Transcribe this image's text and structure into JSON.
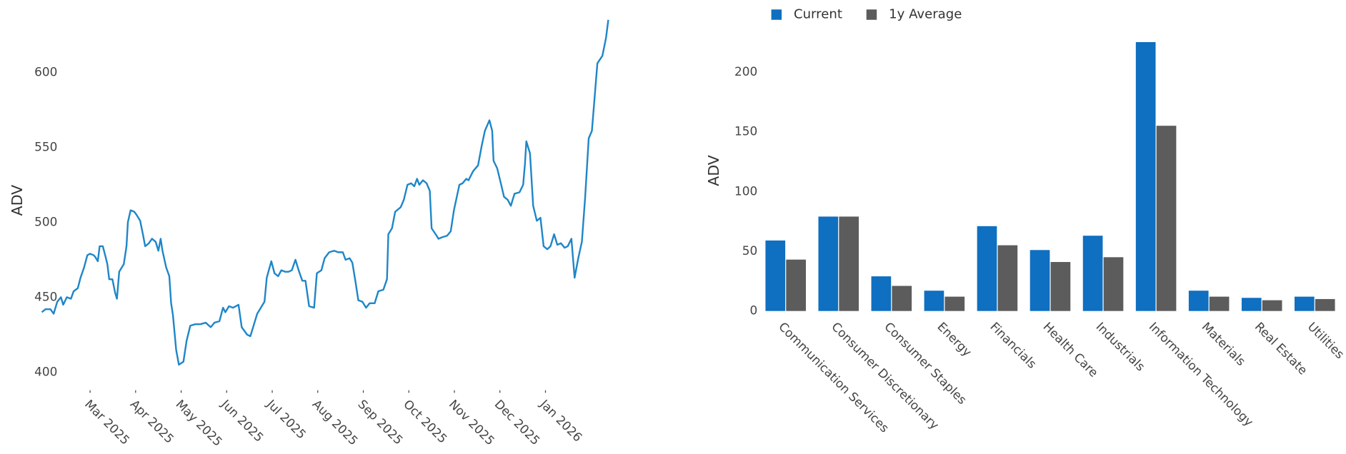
{
  "chart_data": [
    {
      "type": "line",
      "y_label": "ADV",
      "color": "#1f86c8",
      "xlim": [
        -0.21,
        12.57
      ],
      "ylim": [
        391.4,
        637.9
      ],
      "xticks": [
        {
          "value": 1,
          "label": "Mar 2025"
        },
        {
          "value": 2,
          "label": "Apr 2025"
        },
        {
          "value": 3,
          "label": "May 2025"
        },
        {
          "value": 4,
          "label": "Jun 2025"
        },
        {
          "value": 5,
          "label": "Jul 2025"
        },
        {
          "value": 6,
          "label": "Aug 2025"
        },
        {
          "value": 7,
          "label": "Sep 2025"
        },
        {
          "value": 8,
          "label": "Oct 2025"
        },
        {
          "value": 9,
          "label": "Nov 2025"
        },
        {
          "value": 10,
          "label": "Dec 2025"
        },
        {
          "value": 11,
          "label": "Jan 2026"
        }
      ],
      "yticks": [
        400,
        450,
        500,
        550,
        600
      ],
      "x": [
        -0.06,
        0.02,
        0.13,
        0.2,
        0.28,
        0.36,
        0.41,
        0.49,
        0.58,
        0.64,
        0.73,
        0.79,
        0.87,
        0.94,
        1.0,
        1.08,
        1.11,
        1.17,
        1.21,
        1.28,
        1.34,
        1.38,
        1.42,
        1.49,
        1.55,
        1.59,
        1.64,
        1.74,
        1.8,
        1.83,
        1.89,
        1.97,
        2.02,
        2.1,
        2.16,
        2.21,
        2.29,
        2.36,
        2.44,
        2.5,
        2.55,
        2.59,
        2.67,
        2.74,
        2.78,
        2.82,
        2.89,
        2.95,
        3.05,
        3.12,
        3.2,
        3.31,
        3.42,
        3.54,
        3.65,
        3.73,
        3.84,
        3.92,
        3.97,
        4.05,
        4.14,
        4.26,
        4.33,
        4.45,
        4.52,
        4.6,
        4.67,
        4.75,
        4.83,
        4.88,
        4.98,
        5.05,
        5.13,
        5.2,
        5.28,
        5.36,
        5.43,
        5.51,
        5.58,
        5.66,
        5.73,
        5.81,
        5.92,
        5.98,
        6.08,
        6.15,
        6.25,
        6.36,
        6.45,
        6.55,
        6.61,
        6.7,
        6.76,
        6.83,
        6.89,
        6.98,
        7.06,
        7.14,
        7.25,
        7.33,
        7.44,
        7.52,
        7.55,
        7.63,
        7.7,
        7.82,
        7.89,
        7.97,
        8.05,
        8.12,
        8.18,
        8.23,
        8.31,
        8.39,
        8.46,
        8.5,
        8.61,
        8.65,
        8.73,
        8.84,
        8.92,
        8.99,
        9.11,
        9.18,
        9.26,
        9.31,
        9.41,
        9.52,
        9.6,
        9.67,
        9.77,
        9.83,
        9.86,
        9.94,
        10.02,
        10.09,
        10.17,
        10.24,
        10.32,
        10.43,
        10.51,
        10.55,
        10.58,
        10.66,
        10.73,
        10.81,
        10.89,
        10.96,
        11.04,
        11.11,
        11.19,
        11.26,
        11.34,
        11.42,
        11.49,
        11.57,
        11.64,
        11.72,
        11.8,
        11.87,
        11.95,
        12.02,
        12.14,
        12.25,
        12.33,
        12.38
      ],
      "values": [
        440,
        442,
        442,
        439,
        447,
        450,
        445,
        450,
        449,
        454,
        456,
        463,
        470,
        478,
        479,
        478,
        477,
        474,
        484,
        484,
        477,
        472,
        462,
        462,
        453,
        449,
        467,
        472,
        484,
        500,
        508,
        507,
        505,
        501,
        492,
        484,
        486,
        489,
        487,
        481,
        489,
        481,
        470,
        464,
        446,
        438,
        415,
        405,
        407,
        421,
        431,
        432,
        432,
        433,
        430,
        433,
        434,
        443,
        440,
        444,
        443,
        445,
        430,
        425,
        424,
        432,
        439,
        443,
        447,
        463,
        474,
        466,
        464,
        468,
        467,
        467,
        468,
        475,
        468,
        461,
        461,
        444,
        443,
        466,
        468,
        476,
        480,
        481,
        480,
        480,
        475,
        476,
        473,
        460,
        448,
        447,
        443,
        446,
        446,
        454,
        455,
        462,
        492,
        496,
        507,
        510,
        515,
        525,
        526,
        524,
        529,
        525,
        528,
        526,
        521,
        496,
        491,
        489,
        490,
        491,
        494,
        508,
        525,
        526,
        529,
        528,
        534,
        538,
        551,
        561,
        568,
        561,
        541,
        536,
        526,
        517,
        515,
        511,
        519,
        520,
        525,
        539,
        554,
        546,
        511,
        501,
        503,
        484,
        482,
        484,
        492,
        485,
        486,
        483,
        484,
        489,
        463,
        476,
        487,
        516,
        556,
        561,
        606,
        611,
        623,
        635
      ]
    },
    {
      "type": "bar",
      "y_label": "ADV",
      "legend": "top-left",
      "categories": [
        "Communication Services",
        "Consumer Discretionary",
        "Consumer Staples",
        "Energy",
        "Financials",
        "Health Care",
        "Industrials",
        "Information Technology",
        "Materials",
        "Real Estate",
        "Utilities"
      ],
      "series": [
        {
          "name": "Current",
          "color": "#0f6fc0",
          "values": [
            59,
            79,
            29,
            17,
            71,
            51,
            63,
            225,
            17,
            11,
            12
          ]
        },
        {
          "name": "1y Average",
          "color": "#5c5c5c",
          "values": [
            43,
            79,
            21,
            12,
            55,
            41,
            45,
            155,
            12,
            9,
            10
          ]
        }
      ],
      "ylim": [
        0,
        235
      ],
      "yticks": [
        0,
        50,
        100,
        150,
        200
      ]
    }
  ]
}
